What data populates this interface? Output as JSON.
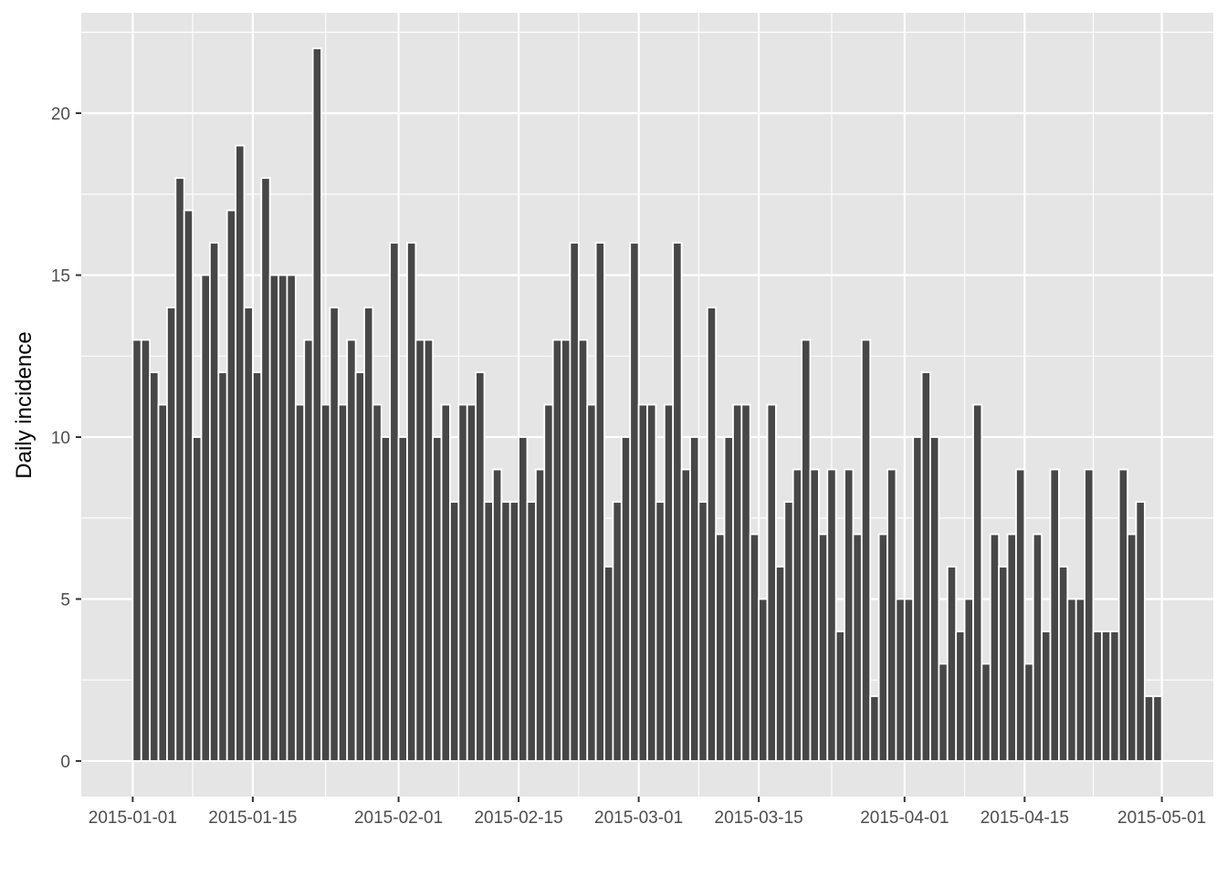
{
  "chart_data": {
    "type": "bar",
    "title": "",
    "xlabel": "",
    "ylabel": "Daily incidence",
    "x_start": "2015-01-01",
    "x_end": "2015-04-29",
    "x_ticks": [
      "2015-01-01",
      "2015-01-15",
      "2015-02-01",
      "2015-02-15",
      "2015-03-01",
      "2015-03-15",
      "2015-04-01",
      "2015-04-15",
      "2015-05-01"
    ],
    "y_ticks": [
      0,
      5,
      10,
      15,
      20
    ],
    "ylim": [
      -1.1,
      23.1
    ],
    "xlim": [
      "2014-12-26",
      "2015-05-07"
    ],
    "grid": true,
    "background": "#e5e5e5",
    "bar_fill": "#474747",
    "bar_outline": "#ffffff",
    "values": [
      13,
      13,
      12,
      11,
      14,
      18,
      17,
      10,
      15,
      16,
      12,
      17,
      19,
      14,
      12,
      18,
      15,
      15,
      15,
      11,
      13,
      22,
      11,
      14,
      11,
      13,
      12,
      14,
      11,
      10,
      16,
      10,
      16,
      13,
      13,
      10,
      11,
      8,
      11,
      11,
      12,
      8,
      9,
      8,
      8,
      10,
      8,
      9,
      11,
      13,
      13,
      16,
      13,
      11,
      16,
      6,
      8,
      10,
      16,
      11,
      11,
      8,
      11,
      16,
      9,
      10,
      8,
      14,
      7,
      10,
      11,
      11,
      7,
      5,
      11,
      6,
      8,
      9,
      13,
      9,
      7,
      9,
      4,
      9,
      7,
      13,
      2,
      7,
      9,
      5,
      5,
      10,
      12,
      10,
      3,
      6,
      4,
      5,
      11,
      3,
      7,
      6,
      7,
      9,
      3,
      7,
      4,
      9,
      6,
      5,
      5,
      9,
      4,
      4,
      4,
      9,
      7,
      8,
      2,
      2
    ]
  }
}
